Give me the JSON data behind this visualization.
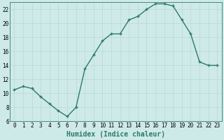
{
  "x": [
    0,
    1,
    2,
    3,
    4,
    5,
    6,
    7,
    8,
    9,
    10,
    11,
    12,
    13,
    14,
    15,
    16,
    17,
    18,
    19,
    20,
    21,
    22,
    23
  ],
  "y": [
    10.5,
    11.0,
    10.7,
    9.5,
    8.5,
    7.5,
    6.7,
    8.0,
    13.5,
    15.5,
    17.5,
    18.5,
    18.5,
    20.5,
    21.0,
    22.0,
    22.8,
    22.8,
    22.5,
    20.5,
    18.5,
    14.5,
    14.0,
    14.0
  ],
  "line_color": "#2d7a6a",
  "marker_color": "#2d7a6a",
  "bg_color": "#ceeae8",
  "grid_color_major": "#b8d8d5",
  "grid_color_minor": "#d4eceb",
  "xlabel": "Humidex (Indice chaleur)",
  "xlim": [
    -0.5,
    23.5
  ],
  "ylim": [
    6,
    23
  ],
  "xticks": [
    0,
    1,
    2,
    3,
    4,
    5,
    6,
    7,
    8,
    9,
    10,
    11,
    12,
    13,
    14,
    15,
    16,
    17,
    18,
    19,
    20,
    21,
    22,
    23
  ],
  "yticks": [
    6,
    8,
    10,
    12,
    14,
    16,
    18,
    20,
    22
  ],
  "tick_fontsize": 5.5,
  "label_fontsize": 7,
  "line_width": 1.0,
  "marker_size": 2.5,
  "figsize": [
    3.2,
    2.0
  ],
  "dpi": 100
}
